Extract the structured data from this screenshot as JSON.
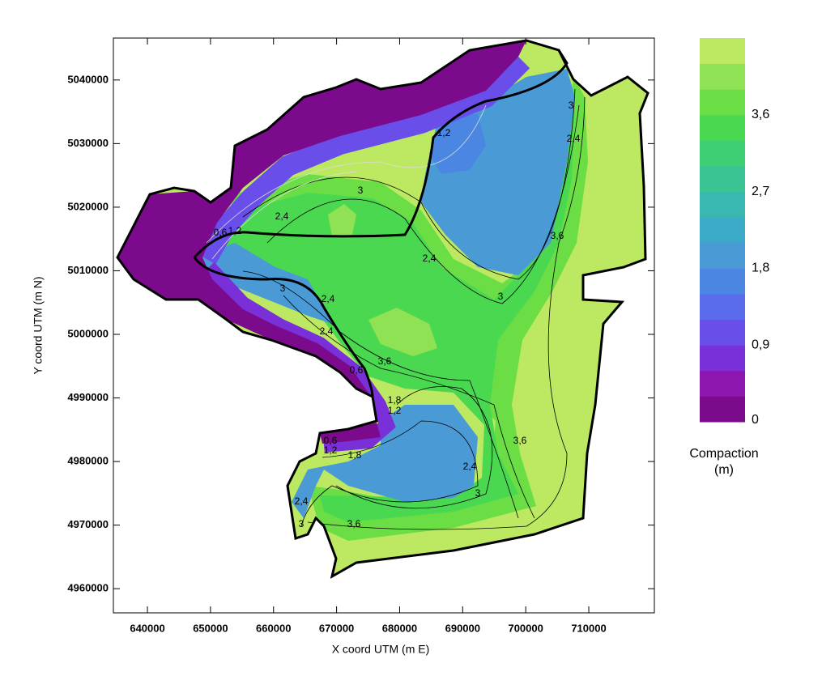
{
  "chart_data": {
    "type": "contour",
    "x_label": "X coord UTM (m E)",
    "y_label": "Y coord UTM (m N)",
    "xlim": [
      634600,
      720400
    ],
    "ylim": [
      4956200,
      5046600
    ],
    "xticks": [
      640000,
      650000,
      660000,
      670000,
      680000,
      690000,
      700000,
      710000
    ],
    "yticks": [
      4960000,
      4970000,
      4980000,
      4990000,
      5000000,
      5010000,
      5020000,
      5030000,
      5040000
    ],
    "colorbar": {
      "title": [
        "Compaction",
        "(m)"
      ],
      "lim": [
        0,
        4.5
      ],
      "ticks": [
        {
          "value": 0,
          "label": "0"
        },
        {
          "value": 0.9,
          "label": "0,9"
        },
        {
          "value": 1.8,
          "label": "1,8"
        },
        {
          "value": 2.7,
          "label": "2,7"
        },
        {
          "value": 3.6,
          "label": "3,6"
        }
      ],
      "levels": [
        0,
        0.3,
        0.6,
        0.9,
        1.2,
        1.5,
        1.8,
        2.1,
        2.4,
        2.7,
        3,
        3.3,
        3.6,
        3.9,
        4.2,
        4.5
      ],
      "colors": [
        "#7c0a8c",
        "#8e16b0",
        "#7a30d8",
        "#6a4eea",
        "#5a6cec",
        "#4a86e2",
        "#4a9ad6",
        "#3aaac8",
        "#38b8b0",
        "#3ac494",
        "#3ecf74",
        "#4ad850",
        "#6ade44",
        "#8ee254",
        "#bde862"
      ]
    },
    "contour_labels": [
      {
        "value": 1.2,
        "label": "1,2"
      },
      {
        "value": 3,
        "label": "3"
      },
      {
        "value": 2.4,
        "label": "2,4"
      },
      {
        "value": 0.6,
        "label": "0,6"
      },
      {
        "value": 1.2,
        "label": "1,2"
      },
      {
        "value": 3,
        "label": "3"
      },
      {
        "value": 2.4,
        "label": "2,4"
      },
      {
        "value": 2.4,
        "label": "2,4"
      },
      {
        "value": 0.6,
        "label": "0,6"
      },
      {
        "value": 3.6,
        "label": "3,6"
      },
      {
        "value": 1.8,
        "label": "1,8"
      },
      {
        "value": 1.2,
        "label": "1,2"
      },
      {
        "value": 0.6,
        "label": "0,6"
      },
      {
        "value": 1.2,
        "label": "1,2"
      },
      {
        "value": 1.8,
        "label": "1,8"
      },
      {
        "value": 2.4,
        "label": "2,4"
      },
      {
        "value": 3,
        "label": "3"
      },
      {
        "value": 2.4,
        "label": "2,4"
      },
      {
        "value": 3,
        "label": "3"
      },
      {
        "value": 3.6,
        "label": "3,6"
      },
      {
        "value": 3.6,
        "label": "3,6"
      },
      {
        "value": 3.6,
        "label": "3,6"
      },
      {
        "value": 2.4,
        "label": "2,4"
      },
      {
        "value": 3,
        "label": "3"
      },
      {
        "value": 2.4,
        "label": "2,4"
      },
      {
        "value": 3,
        "label": "3"
      }
    ]
  }
}
